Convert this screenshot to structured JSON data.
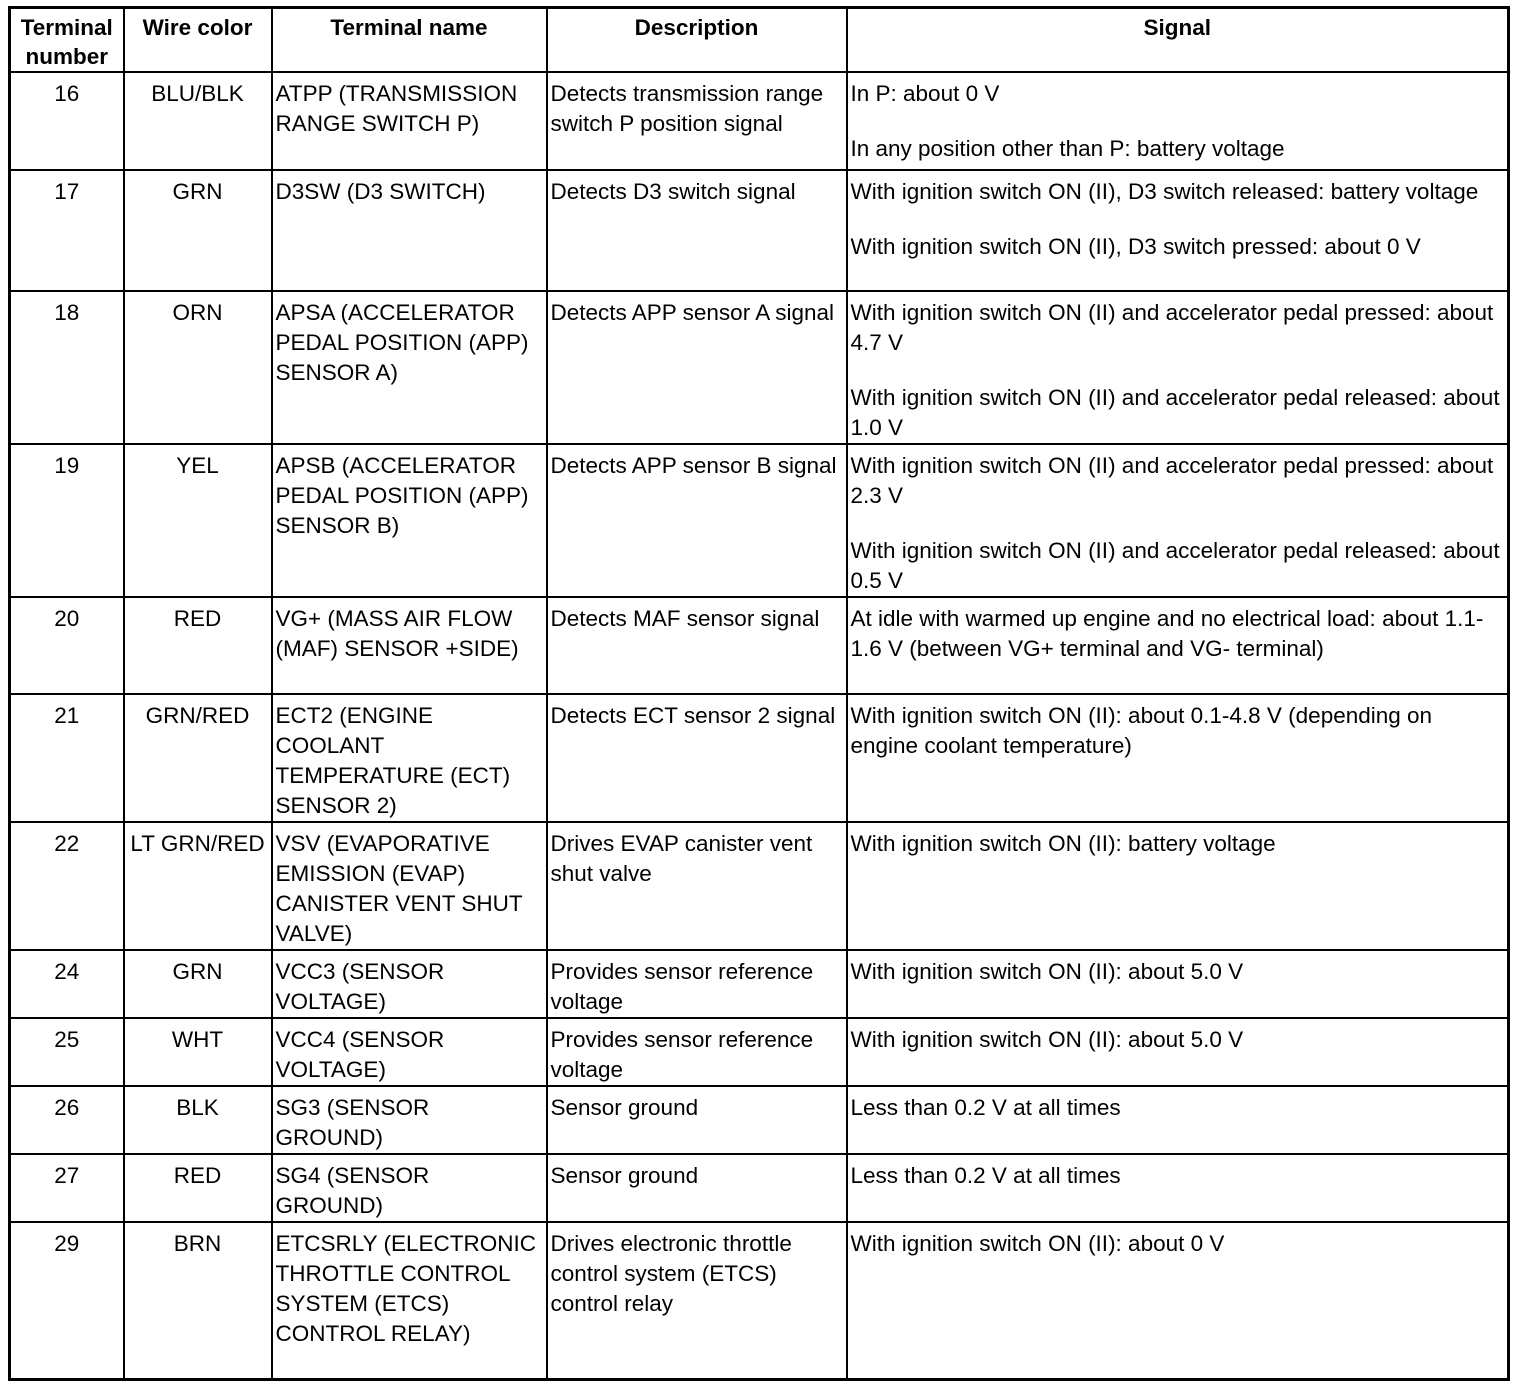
{
  "table": {
    "headers": [
      "Terminal number",
      "Wire color",
      "Terminal name",
      "Description",
      "Signal"
    ],
    "rows": [
      {
        "number": "16",
        "wire": "BLU/BLK",
        "name": "ATPP (TRANSMISSION RANGE SWITCH P)",
        "description": "Detects transmission range switch P position signal",
        "signal": [
          "In P: about 0 V",
          "In any position other than P: battery voltage"
        ]
      },
      {
        "number": "17",
        "wire": "GRN",
        "name": "D3SW (D3 SWITCH)",
        "description": "Detects D3 switch signal",
        "signal": [
          "With ignition switch ON (II), D3 switch released: battery voltage",
          "With ignition switch ON (II), D3 switch pressed: about 0 V"
        ]
      },
      {
        "number": "18",
        "wire": "ORN",
        "name": "APSA (ACCELERATOR PEDAL POSITION (APP) SENSOR A)",
        "description": "Detects APP sensor A signal",
        "signal": [
          "With ignition switch ON (II) and accelerator pedal pressed: about 4.7 V",
          "With ignition switch ON (II) and accelerator pedal released: about 1.0 V"
        ]
      },
      {
        "number": "19",
        "wire": "YEL",
        "name": "APSB (ACCELERATOR PEDAL POSITION (APP) SENSOR B)",
        "description": "Detects APP sensor B signal",
        "signal": [
          "With ignition switch ON (II) and accelerator pedal pressed: about 2.3 V",
          "With ignition switch ON (II) and accelerator pedal released: about 0.5 V"
        ]
      },
      {
        "number": "20",
        "wire": "RED",
        "name": "VG+ (MASS AIR FLOW (MAF) SENSOR +SIDE)",
        "description": "Detects MAF sensor signal",
        "signal": [
          "At idle with warmed up engine and no electrical load: about 1.1-1.6 V (between VG+ terminal and VG- terminal)"
        ]
      },
      {
        "number": "21",
        "wire": "GRN/RED",
        "name": "ECT2 (ENGINE COOLANT TEMPERATURE (ECT) SENSOR 2)",
        "description": "Detects ECT sensor 2 signal",
        "signal": [
          "With ignition switch ON (II): about 0.1-4.8 V (depending on engine coolant temperature)"
        ]
      },
      {
        "number": "22",
        "wire": "LT GRN/RED",
        "name": "VSV (EVAPORATIVE EMISSION (EVAP) CANISTER VENT SHUT VALVE)",
        "description": "Drives EVAP canister vent shut valve",
        "signal": [
          "With ignition switch ON (II): battery voltage"
        ]
      },
      {
        "number": "24",
        "wire": "GRN",
        "name": "VCC3 (SENSOR VOLTAGE)",
        "description": "Provides sensor reference voltage",
        "signal": [
          "With ignition switch ON (II): about 5.0 V"
        ]
      },
      {
        "number": "25",
        "wire": "WHT",
        "name": "VCC4 (SENSOR VOLTAGE)",
        "description": "Provides sensor reference voltage",
        "signal": [
          "With ignition switch ON (II): about 5.0 V"
        ]
      },
      {
        "number": "26",
        "wire": "BLK",
        "name": "SG3 (SENSOR GROUND)",
        "description": "Sensor ground",
        "signal": [
          "Less than 0.2 V at all times"
        ]
      },
      {
        "number": "27",
        "wire": "RED",
        "name": "SG4 (SENSOR GROUND)",
        "description": "Sensor ground",
        "signal": [
          "Less than 0.2 V at all times"
        ]
      },
      {
        "number": "29",
        "wire": "BRN",
        "name": "ETCSRLY (ELECTRONIC THROTTLE CONTROL SYSTEM (ETCS) CONTROL RELAY)",
        "description": "Drives electronic throttle control system (ETCS) control relay",
        "signal": [
          "With ignition switch ON (II): about 0 V"
        ]
      }
    ]
  }
}
